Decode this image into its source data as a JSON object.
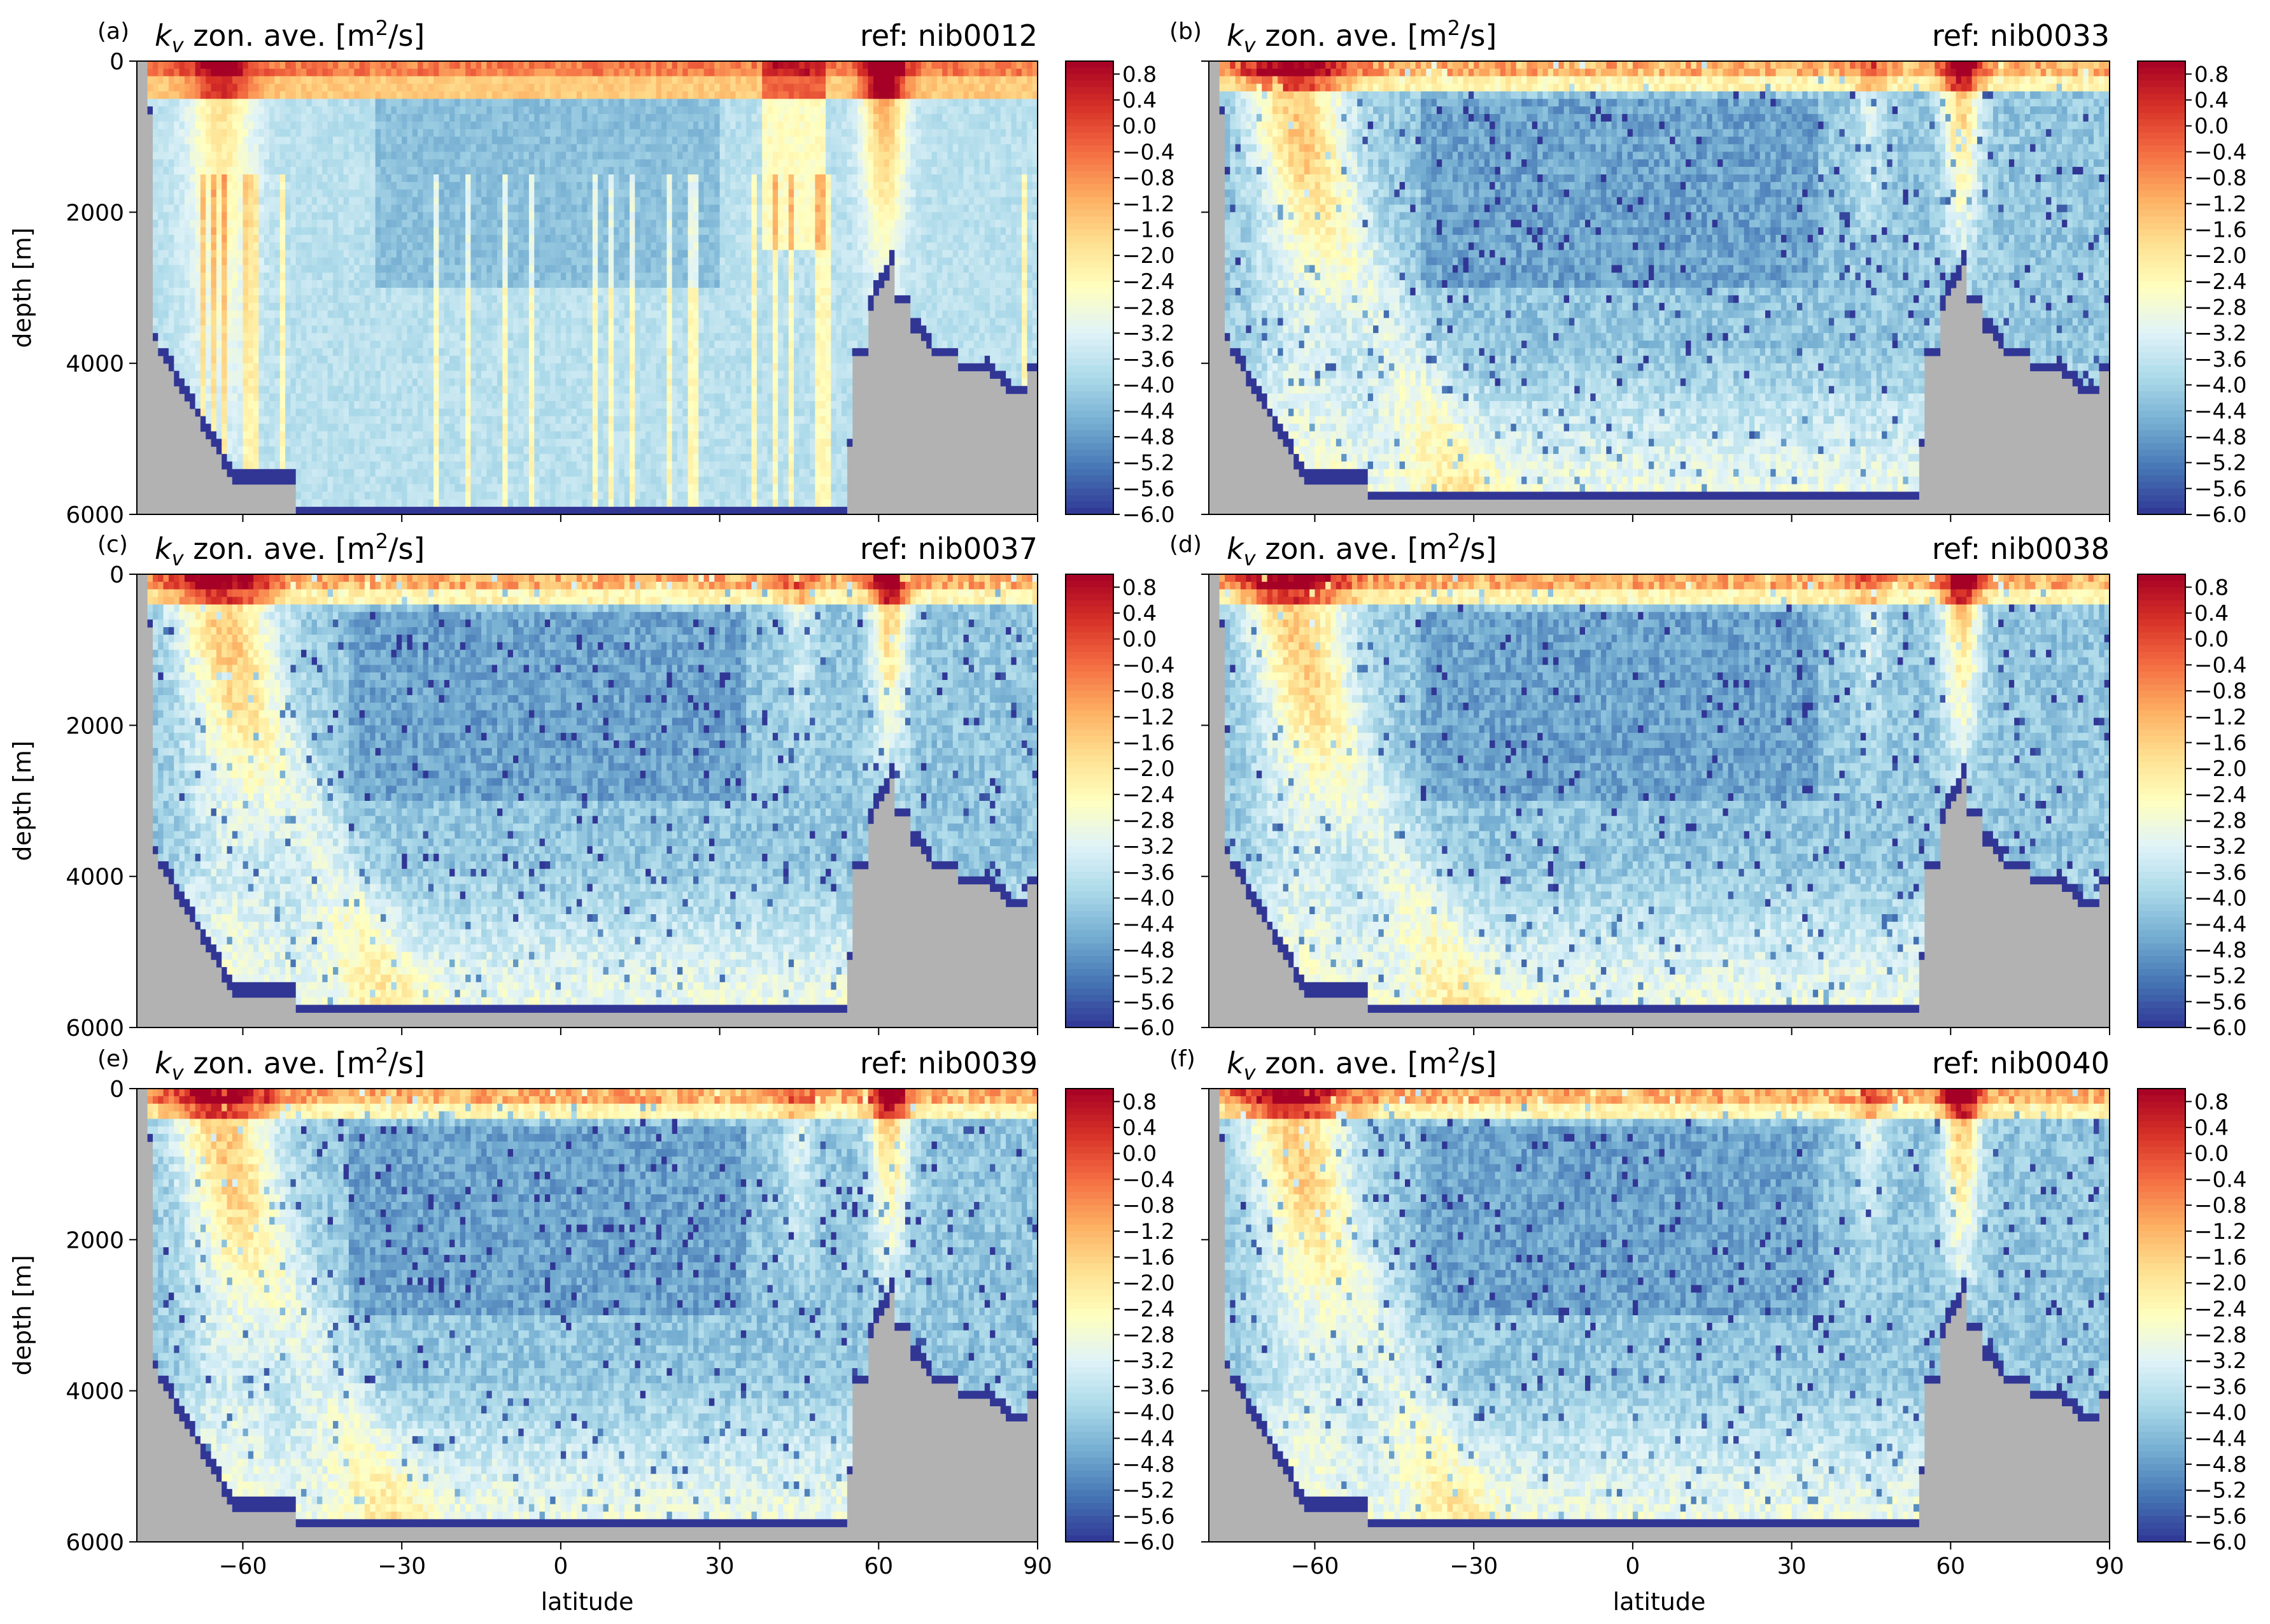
{
  "chart_data": {
    "type": "heatmap",
    "description_units": {
      "variable": "k_v",
      "colorbar_scale": "log10 of m^2/s"
    },
    "xlabel": "latitude",
    "ylabel": "depth [m]",
    "xlim": [
      -80,
      90
    ],
    "ylim": [
      6000,
      0
    ],
    "x_ticks": [
      -60,
      -30,
      0,
      30,
      60,
      90
    ],
    "x_tick_labels": [
      "−60",
      "−30",
      "0",
      "30",
      "60",
      "90"
    ],
    "y_ticks": [
      0,
      2000,
      4000,
      6000
    ],
    "y_tick_labels": [
      "0",
      "2000",
      "4000",
      "6000"
    ],
    "colorbar": {
      "range": [
        -6.0,
        1.0
      ],
      "colormap": "RdYlBu_r",
      "ticks": [
        0.8,
        0.4,
        0.0,
        -0.4,
        -0.8,
        -1.2,
        -1.6,
        -2.0,
        -2.4,
        -2.8,
        -3.2,
        -3.6,
        -4.0,
        -4.4,
        -4.8,
        -5.2,
        -5.6,
        -6.0
      ],
      "tick_labels": [
        "0.8",
        "0.4",
        "0.0",
        "−0.4",
        "−0.8",
        "−1.2",
        "−1.6",
        "−2.0",
        "−2.4",
        "−2.8",
        "−3.2",
        "−3.6",
        "−4.0",
        "−4.4",
        "−4.8",
        "−5.2",
        "−5.6",
        "−6.0"
      ]
    },
    "land_color": "#b2b2b2",
    "panels": [
      {
        "tag": "(a)",
        "title_main": "k",
        "title_sub": "v",
        "title_rest": " zon. ave. [m",
        "title_sup": "2",
        "title_end": "/s]",
        "ref": "ref: nib0012",
        "style": "nib0012"
      },
      {
        "tag": "(b)",
        "title_main": "k",
        "title_sub": "v",
        "title_rest": " zon. ave. [m",
        "title_sup": "2",
        "title_end": "/s]",
        "ref": "ref: nib0033",
        "style": "other"
      },
      {
        "tag": "(c)",
        "title_main": "k",
        "title_sub": "v",
        "title_rest": " zon. ave. [m",
        "title_sup": "2",
        "title_end": "/s]",
        "ref": "ref: nib0037",
        "style": "other"
      },
      {
        "tag": "(d)",
        "title_main": "k",
        "title_sub": "v",
        "title_rest": " zon. ave. [m",
        "title_sup": "2",
        "title_end": "/s]",
        "ref": "ref: nib0038",
        "style": "other"
      },
      {
        "tag": "(e)",
        "title_main": "k",
        "title_sub": "v",
        "title_rest": " zon. ave. [m",
        "title_sup": "2",
        "title_end": "/s]",
        "ref": "ref: nib0039",
        "style": "other"
      },
      {
        "tag": "(f)",
        "title_main": "k",
        "title_sub": "v",
        "title_rest": " zon. ave. [m",
        "title_sup": "2",
        "title_end": "/s]",
        "ref": "ref: nib0040",
        "style": "other"
      }
    ]
  }
}
